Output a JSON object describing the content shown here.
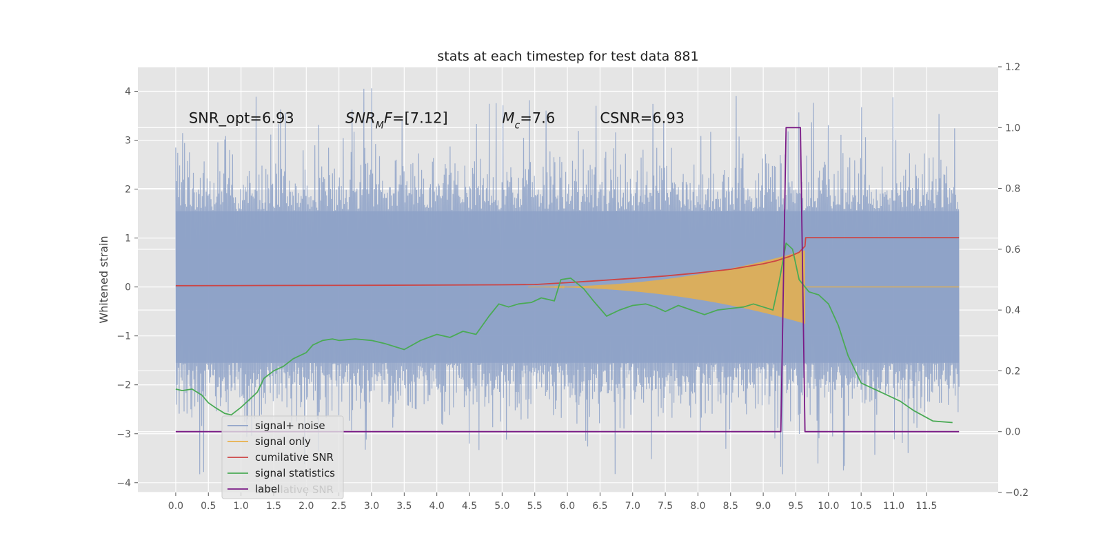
{
  "chart_data": {
    "type": "line",
    "title": "stats at each timestep for test data 881",
    "ylabel_left": "Whitened strain",
    "ylabel_right": "",
    "xlabel": "",
    "xlim": [
      -0.58,
      12.6
    ],
    "ylim_left": [
      -4.2,
      4.5
    ],
    "ylim_right": [
      -0.2,
      1.2
    ],
    "x_ticks": [
      "0.0",
      "0.5",
      "1.0",
      "1.5",
      "2.0",
      "2.5",
      "3.0",
      "3.5",
      "4.0",
      "4.5",
      "5.0",
      "5.5",
      "6.0",
      "6.5",
      "7.0",
      "7.5",
      "8.0",
      "8.5",
      "9.0",
      "9.5",
      "10.0",
      "10.5",
      "11.0",
      "11.5"
    ],
    "y_ticks_left": [
      "−4",
      "−3",
      "−2",
      "−1",
      "0",
      "1",
      "2",
      "3",
      "4"
    ],
    "y_ticks_right": [
      "−0.2",
      "0.0",
      "0.2",
      "0.4",
      "0.6",
      "0.8",
      "1.0",
      "1.2"
    ],
    "grid": true,
    "legend_position": "lower-left",
    "annotations": [
      {
        "parts": [
          {
            "t": "SNR_opt=6.93",
            "i": false
          }
        ],
        "x": 0.2,
        "y": 3.35
      },
      {
        "parts": [
          {
            "t": "SNR",
            "i": true
          },
          {
            "t": "M",
            "i": true,
            "sub": true
          },
          {
            "t": "F",
            "i": true
          },
          {
            "t": "=[7.12]",
            "i": false
          }
        ],
        "x": 2.6,
        "y": 3.35
      },
      {
        "parts": [
          {
            "t": "M",
            "i": true
          },
          {
            "t": "c",
            "i": true,
            "sub": true
          },
          {
            "t": "=7.6",
            "i": false
          }
        ],
        "x": 5.0,
        "y": 3.35
      },
      {
        "parts": [
          {
            "t": "CSNR=6.93",
            "i": false
          }
        ],
        "x": 6.5,
        "y": 3.35
      }
    ],
    "series": [
      {
        "name": "signal+ noise",
        "axis": "left",
        "color": "#8ea2c8",
        "x_range": [
          0.0,
          12.0
        ],
        "samples": 1600,
        "envelope": {
          "typical_min": -2.2,
          "typical_max": 2.3,
          "peak_max": 4.1,
          "peak_min": -3.85
        }
      },
      {
        "name": "signal only",
        "axis": "left",
        "color": "#e8b04a",
        "chirp": {
          "start": 5.4,
          "end": 9.64,
          "max_amplitude": 0.75
        }
      },
      {
        "name": "cumilative SNR",
        "axis": "right",
        "color": "#cc4444",
        "x": [
          0.0,
          1.0,
          2.0,
          3.0,
          4.0,
          5.0,
          5.5,
          6.0,
          6.5,
          7.0,
          7.5,
          8.0,
          8.5,
          9.0,
          9.2,
          9.4,
          9.55,
          9.64,
          9.65,
          12.0
        ],
        "values": [
          0.48,
          0.4805,
          0.481,
          0.4815,
          0.482,
          0.483,
          0.484,
          0.49,
          0.497,
          0.504,
          0.512,
          0.522,
          0.534,
          0.552,
          0.562,
          0.576,
          0.59,
          0.61,
          0.638,
          0.638
        ]
      },
      {
        "name": "signal statistics",
        "axis": "right",
        "color": "#4aaa55",
        "x": [
          0.0,
          0.1,
          0.25,
          0.4,
          0.5,
          0.6,
          0.75,
          0.85,
          1.0,
          1.1,
          1.25,
          1.35,
          1.5,
          1.65,
          1.8,
          2.0,
          2.1,
          2.25,
          2.4,
          2.5,
          2.75,
          3.0,
          3.2,
          3.5,
          3.75,
          4.0,
          4.2,
          4.4,
          4.6,
          4.8,
          4.95,
          5.1,
          5.25,
          5.45,
          5.6,
          5.8,
          5.9,
          6.05,
          6.25,
          6.4,
          6.6,
          6.8,
          7.0,
          7.2,
          7.35,
          7.5,
          7.7,
          7.9,
          8.1,
          8.3,
          8.5,
          8.7,
          8.85,
          9.0,
          9.15,
          9.25,
          9.35,
          9.45,
          9.55,
          9.7,
          9.85,
          10.0,
          10.15,
          10.3,
          10.5,
          10.7,
          10.9,
          11.1,
          11.3,
          11.6,
          11.9
        ],
        "values": [
          0.14,
          0.135,
          0.14,
          0.12,
          0.095,
          0.08,
          0.06,
          0.055,
          0.08,
          0.1,
          0.13,
          0.175,
          0.2,
          0.215,
          0.24,
          0.26,
          0.285,
          0.3,
          0.305,
          0.3,
          0.305,
          0.3,
          0.29,
          0.27,
          0.3,
          0.32,
          0.31,
          0.33,
          0.32,
          0.38,
          0.42,
          0.41,
          0.42,
          0.425,
          0.44,
          0.43,
          0.5,
          0.505,
          0.47,
          0.43,
          0.38,
          0.4,
          0.415,
          0.42,
          0.41,
          0.395,
          0.415,
          0.4,
          0.385,
          0.4,
          0.405,
          0.41,
          0.42,
          0.41,
          0.4,
          0.5,
          0.62,
          0.6,
          0.5,
          0.46,
          0.45,
          0.42,
          0.35,
          0.25,
          0.16,
          0.14,
          0.12,
          0.1,
          0.07,
          0.035,
          0.03
        ]
      },
      {
        "name": "label",
        "axis": "right",
        "color": "#7a1a86",
        "x": [
          0.0,
          9.27,
          9.35,
          9.57,
          9.64,
          12.0
        ],
        "values": [
          0.0,
          0.0,
          1.0,
          1.0,
          0.0,
          0.0
        ]
      }
    ],
    "legend": {
      "entries": [
        "signal+ noise",
        "signal only",
        "cumilative SNR",
        "signal statistics",
        "label"
      ],
      "ghost_text": "cumilative SNR"
    }
  }
}
